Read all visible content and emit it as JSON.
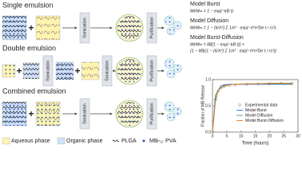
{
  "rows": [
    {
      "label": "Single emulsion",
      "steps": [
        "Sonication",
        "Purification"
      ]
    },
    {
      "label": "Double emulsion",
      "steps": [
        "Sonication",
        "Sonication",
        "Purification"
      ]
    },
    {
      "label": "Combined emulsion",
      "steps": [
        "Sonication",
        "Purification"
      ]
    }
  ],
  "models": [
    {
      "name": "Model Burst",
      "color": "#2a6fd6",
      "equation": [
        "Mt/M∞ = 1 − exp(−kB·t)"
      ]
    },
    {
      "name": "Model Diffusion",
      "color": "#3fa34d",
      "equation": [
        "Mt/M∞ = 1 − (6/π²) Σ 1/n² · exp(−π²n²De·t / rs²)"
      ]
    },
    {
      "name": "Model Burst-Diffusion",
      "color": "#e8772e",
      "equation": [
        "Mt/M∞ = θB[1 − exp(−kB·t)] +",
        "(1 − θB){1 − (6/π²) Σ 1/n² · exp(−π²n²De·t / rs²)}"
      ]
    }
  ],
  "legend": [
    "Aqueous phase",
    "Organic phase",
    "PLGA",
    "MB",
    "PVA"
  ],
  "chart_data": {
    "type": "line",
    "x_label": "Time (hours)",
    "y_label": "Fraction of MB Release",
    "x": [
      0,
      1,
      2,
      3,
      4,
      6,
      8,
      12,
      16,
      20,
      24,
      28
    ],
    "series": [
      {
        "name": "Experimental data",
        "color": "#777777",
        "mode": "markers",
        "values": [
          0,
          0.62,
          0.78,
          0.84,
          0.87,
          0.89,
          0.9,
          0.91,
          0.92,
          0.92,
          0.93,
          0.93
        ]
      },
      {
        "name": "Model Burst",
        "color": "#2a6fd6",
        "mode": "line",
        "values": [
          0,
          0.58,
          0.8,
          0.88,
          0.9,
          0.91,
          0.91,
          0.91,
          0.91,
          0.91,
          0.91,
          0.91
        ]
      },
      {
        "name": "Model Diffusion",
        "color": "#3fa34d",
        "mode": "line",
        "values": [
          0,
          0.7,
          0.8,
          0.85,
          0.87,
          0.9,
          0.91,
          0.92,
          0.92,
          0.92,
          0.92,
          0.92
        ]
      },
      {
        "name": "Model Burst-Diffusion",
        "color": "#e8772e",
        "mode": "line",
        "values": [
          0,
          0.63,
          0.79,
          0.85,
          0.88,
          0.9,
          0.91,
          0.92,
          0.92,
          0.93,
          0.93,
          0.93
        ]
      }
    ],
    "xlim": [
      0,
      30
    ],
    "xticks": [
      0,
      5,
      10,
      15,
      20,
      25,
      30
    ],
    "ylim": [
      0,
      1
    ],
    "yticks": [
      {
        "value": 0,
        "label": "0.0"
      },
      0.5,
      {
        "value": 1,
        "label": "1.0"
      }
    ],
    "grid": false
  }
}
